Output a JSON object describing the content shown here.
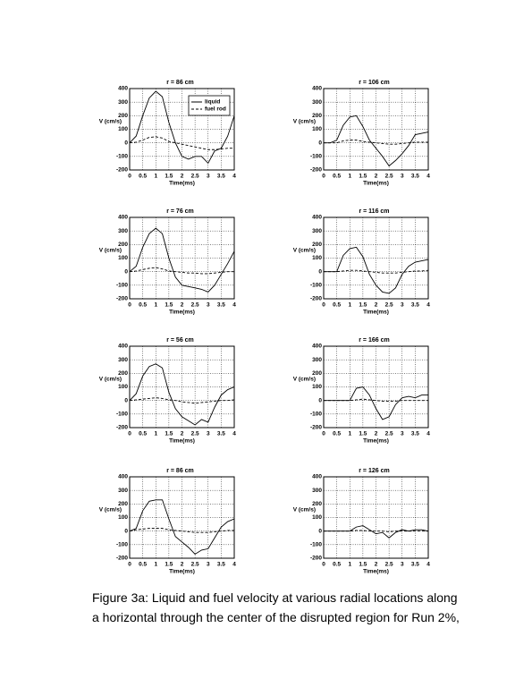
{
  "chart_data": [
    {
      "type": "line",
      "title": "r = 86 cm",
      "y_label": "V (cm/s)",
      "x_label": "Time(ms)",
      "x": [
        0,
        0.25,
        0.5,
        0.75,
        1,
        1.25,
        1.5,
        1.75,
        2,
        2.25,
        2.5,
        2.75,
        3,
        3.25,
        3.5,
        3.75,
        4
      ],
      "series": [
        {
          "name": "liquid",
          "color": "#000000",
          "linestyle": "solid",
          "values": [
            0,
            50,
            200,
            330,
            380,
            340,
            150,
            0,
            -100,
            -120,
            -100,
            -100,
            -150,
            -60,
            -40,
            50,
            200
          ]
        },
        {
          "name": "fuel rod",
          "color": "#000000",
          "linestyle": "dashed",
          "values": [
            0,
            5,
            20,
            40,
            45,
            35,
            10,
            0,
            -10,
            -20,
            -30,
            -40,
            -50,
            -50,
            -45,
            -40,
            -40
          ]
        }
      ],
      "xlim": [
        0,
        4
      ],
      "xticks": [
        0,
        0.5,
        1,
        1.5,
        2,
        2.5,
        3,
        3.5,
        4
      ],
      "ylim": [
        -200,
        400
      ],
      "yticks": [
        -200,
        -100,
        0,
        100,
        200,
        300,
        400
      ],
      "grid": true,
      "legend": "upper right"
    },
    {
      "type": "line",
      "title": "r = 106 cm",
      "y_label": "V (cm/s)",
      "x_label": "Time(ms)",
      "x": [
        0,
        0.25,
        0.5,
        0.75,
        1,
        1.25,
        1.5,
        1.75,
        2,
        2.25,
        2.5,
        2.75,
        3,
        3.25,
        3.5,
        3.75,
        4
      ],
      "series": [
        {
          "color": "#000000",
          "linestyle": "solid",
          "values": [
            0,
            0,
            20,
            130,
            190,
            200,
            120,
            20,
            -40,
            -100,
            -170,
            -130,
            -80,
            -20,
            60,
            70,
            80
          ]
        },
        {
          "color": "#000000",
          "linestyle": "dashed",
          "values": [
            0,
            0,
            0,
            15,
            20,
            20,
            10,
            5,
            0,
            -5,
            -10,
            -10,
            -5,
            0,
            5,
            5,
            5
          ]
        }
      ],
      "xlim": [
        0,
        4
      ],
      "xticks": [
        0,
        0.5,
        1,
        1.5,
        2,
        2.5,
        3,
        3.5,
        4
      ],
      "ylim": [
        -200,
        400
      ],
      "yticks": [
        -200,
        -100,
        0,
        100,
        200,
        300,
        400
      ],
      "grid": true
    },
    {
      "type": "line",
      "title": "r = 76 cm",
      "y_label": "V (cm/s)",
      "x_label": "Time(ms)",
      "x": [
        0,
        0.25,
        0.5,
        0.75,
        1,
        1.25,
        1.5,
        1.75,
        2,
        2.25,
        2.5,
        2.75,
        3,
        3.25,
        3.5,
        3.75,
        4
      ],
      "series": [
        {
          "color": "#000000",
          "linestyle": "solid",
          "values": [
            0,
            40,
            180,
            280,
            320,
            280,
            100,
            -40,
            -100,
            -110,
            -120,
            -130,
            -150,
            -100,
            -20,
            60,
            150
          ]
        },
        {
          "color": "#000000",
          "linestyle": "dashed",
          "values": [
            0,
            5,
            15,
            25,
            30,
            20,
            5,
            0,
            -5,
            -10,
            -10,
            -15,
            -15,
            -10,
            -5,
            0,
            0
          ]
        }
      ],
      "xlim": [
        0,
        4
      ],
      "xticks": [
        0,
        0.5,
        1,
        1.5,
        2,
        2.5,
        3,
        3.5,
        4
      ],
      "ylim": [
        -200,
        400
      ],
      "yticks": [
        -200,
        -100,
        0,
        100,
        200,
        300,
        400
      ],
      "grid": true
    },
    {
      "type": "line",
      "title": "r = 116 cm",
      "y_label": "V (cm/s)",
      "x_label": "Time(ms)",
      "x": [
        0,
        0.25,
        0.5,
        0.75,
        1,
        1.25,
        1.5,
        1.75,
        2,
        2.25,
        2.5,
        2.75,
        3,
        3.25,
        3.5,
        3.75,
        4
      ],
      "series": [
        {
          "color": "#000000",
          "linestyle": "solid",
          "values": [
            0,
            0,
            0,
            120,
            170,
            180,
            110,
            -20,
            -100,
            -150,
            -160,
            -120,
            -20,
            40,
            70,
            80,
            90
          ]
        },
        {
          "color": "#000000",
          "linestyle": "dashed",
          "values": [
            0,
            0,
            0,
            5,
            10,
            10,
            5,
            0,
            -5,
            -10,
            -10,
            -10,
            -5,
            0,
            5,
            5,
            10
          ]
        }
      ],
      "xlim": [
        0,
        4
      ],
      "xticks": [
        0,
        0.5,
        1,
        1.5,
        2,
        2.5,
        3,
        3.5,
        4
      ],
      "ylim": [
        -200,
        400
      ],
      "yticks": [
        -200,
        -100,
        0,
        100,
        200,
        300,
        400
      ],
      "grid": true
    },
    {
      "type": "line",
      "title": "r = 56 cm",
      "y_label": "V (cm/s)",
      "x_label": "Time(ms)",
      "x": [
        0,
        0.25,
        0.5,
        0.75,
        1,
        1.25,
        1.5,
        1.75,
        2,
        2.25,
        2.5,
        2.75,
        3,
        3.25,
        3.5,
        3.75,
        4
      ],
      "series": [
        {
          "color": "#000000",
          "linestyle": "solid",
          "values": [
            0,
            50,
            180,
            250,
            270,
            240,
            60,
            -60,
            -120,
            -150,
            -180,
            -140,
            -160,
            -50,
            40,
            80,
            100
          ]
        },
        {
          "color": "#000000",
          "linestyle": "dashed",
          "values": [
            0,
            5,
            10,
            15,
            20,
            15,
            5,
            0,
            -10,
            -15,
            -20,
            -15,
            -10,
            -5,
            0,
            0,
            5
          ]
        }
      ],
      "xlim": [
        0,
        4
      ],
      "xticks": [
        0,
        0.5,
        1,
        1.5,
        2,
        2.5,
        3,
        3.5,
        4
      ],
      "ylim": [
        -200,
        400
      ],
      "yticks": [
        -200,
        -100,
        0,
        100,
        200,
        300,
        400
      ],
      "grid": true
    },
    {
      "type": "line",
      "title": "r = 166 cm",
      "y_label": "V (cm/s)",
      "x_label": "Time(ms)",
      "x": [
        0,
        0.25,
        0.5,
        0.75,
        1,
        1.25,
        1.5,
        1.75,
        2,
        2.25,
        2.5,
        2.75,
        3,
        3.25,
        3.5,
        3.75,
        4
      ],
      "series": [
        {
          "color": "#000000",
          "linestyle": "solid",
          "values": [
            0,
            0,
            0,
            0,
            0,
            90,
            100,
            40,
            -60,
            -140,
            -120,
            -30,
            20,
            30,
            20,
            40,
            40
          ]
        },
        {
          "color": "#000000",
          "linestyle": "dashed",
          "values": [
            0,
            0,
            0,
            0,
            0,
            5,
            10,
            5,
            0,
            -5,
            -5,
            -5,
            0,
            0,
            0,
            0,
            0
          ]
        }
      ],
      "xlim": [
        0,
        4
      ],
      "xticks": [
        0,
        0.5,
        1,
        1.5,
        2,
        2.5,
        3,
        3.5,
        4
      ],
      "ylim": [
        -200,
        400
      ],
      "yticks": [
        -200,
        -100,
        0,
        100,
        200,
        300,
        400
      ],
      "grid": true
    },
    {
      "type": "line",
      "title": "r = 86 cm",
      "y_label": "V (cm/s)",
      "x_label": "Time(ms)",
      "x": [
        0,
        0.25,
        0.5,
        0.75,
        1,
        1.25,
        1.5,
        1.75,
        2,
        2.25,
        2.5,
        2.75,
        3,
        3.25,
        3.5,
        3.75,
        4
      ],
      "series": [
        {
          "color": "#000000",
          "linestyle": "solid",
          "values": [
            0,
            20,
            150,
            220,
            230,
            230,
            90,
            -40,
            -80,
            -120,
            -170,
            -140,
            -130,
            -50,
            30,
            70,
            90
          ]
        },
        {
          "color": "#000000",
          "linestyle": "dashed",
          "values": [
            0,
            10,
            15,
            20,
            20,
            20,
            10,
            5,
            0,
            -5,
            -10,
            -10,
            -10,
            -5,
            0,
            5,
            5
          ]
        }
      ],
      "xlim": [
        0,
        4
      ],
      "xticks": [
        0,
        0.5,
        1,
        1.5,
        2,
        2.5,
        3,
        3.5,
        4
      ],
      "ylim": [
        -200,
        400
      ],
      "yticks": [
        -200,
        -100,
        0,
        100,
        200,
        300,
        400
      ],
      "grid": true
    },
    {
      "type": "line",
      "title": "r = 126 cm",
      "y_label": "V (cm/s)",
      "x_label": "Time(ms)",
      "x": [
        0,
        0.25,
        0.5,
        0.75,
        1,
        1.25,
        1.5,
        1.75,
        2,
        2.25,
        2.5,
        2.75,
        3,
        3.25,
        3.5,
        3.75,
        4
      ],
      "series": [
        {
          "color": "#000000",
          "linestyle": "solid",
          "values": [
            0,
            0,
            0,
            0,
            0,
            30,
            40,
            10,
            -20,
            -10,
            -50,
            -10,
            10,
            0,
            10,
            10,
            0
          ]
        },
        {
          "color": "#000000",
          "linestyle": "dashed",
          "values": [
            0,
            0,
            0,
            0,
            0,
            5,
            5,
            0,
            0,
            0,
            -5,
            0,
            0,
            0,
            0,
            0,
            0
          ]
        }
      ],
      "xlim": [
        0,
        4
      ],
      "xticks": [
        0,
        0.5,
        1,
        1.5,
        2,
        2.5,
        3,
        3.5,
        4
      ],
      "ylim": [
        -200,
        400
      ],
      "yticks": [
        -200,
        -100,
        0,
        100,
        200,
        300,
        400
      ],
      "grid": true
    }
  ],
  "caption": [
    "Figure 3a:  Liquid and fuel velocity at various radial locations along",
    "a horizontal through the center of the disrupted region for Run 2%,"
  ]
}
